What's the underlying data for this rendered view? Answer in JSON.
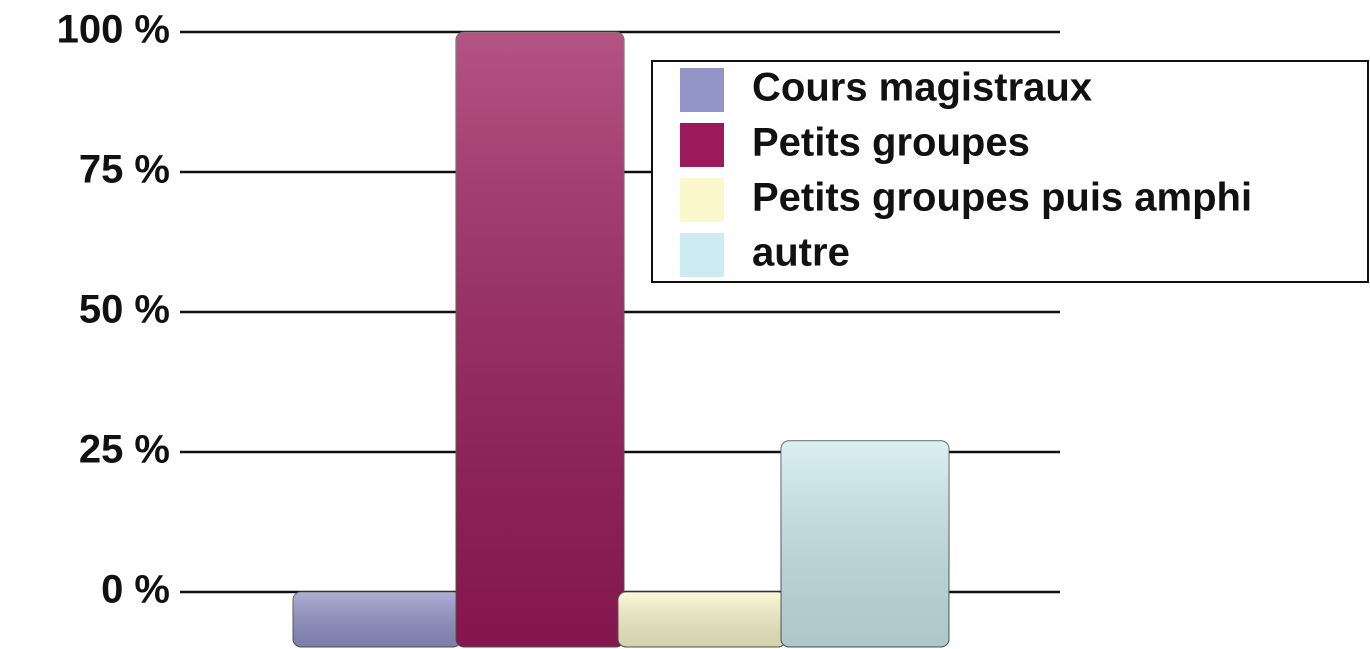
{
  "chart_data": {
    "type": "bar",
    "series": [
      {
        "name": "Cours magistraux",
        "color": "#9394c8",
        "values": [
          0
        ]
      },
      {
        "name": "Petits groupes",
        "color": "#9b1b5a",
        "values": [
          100
        ]
      },
      {
        "name": "Petits groupes puis amphi",
        "color": "#fbf7cd",
        "values": [
          0
        ]
      },
      {
        "name": "autre",
        "color": "#cdebf0",
        "values": [
          27
        ]
      }
    ],
    "ylim": [
      0,
      100
    ],
    "yticks": [
      {
        "value": 0,
        "label": "0 %"
      },
      {
        "value": 25,
        "label": "25 %"
      },
      {
        "value": 50,
        "label": "50 %"
      },
      {
        "value": 75,
        "label": "75 %"
      },
      {
        "value": 100,
        "label": "100 %"
      }
    ],
    "grid": true,
    "legend": "top-right"
  }
}
